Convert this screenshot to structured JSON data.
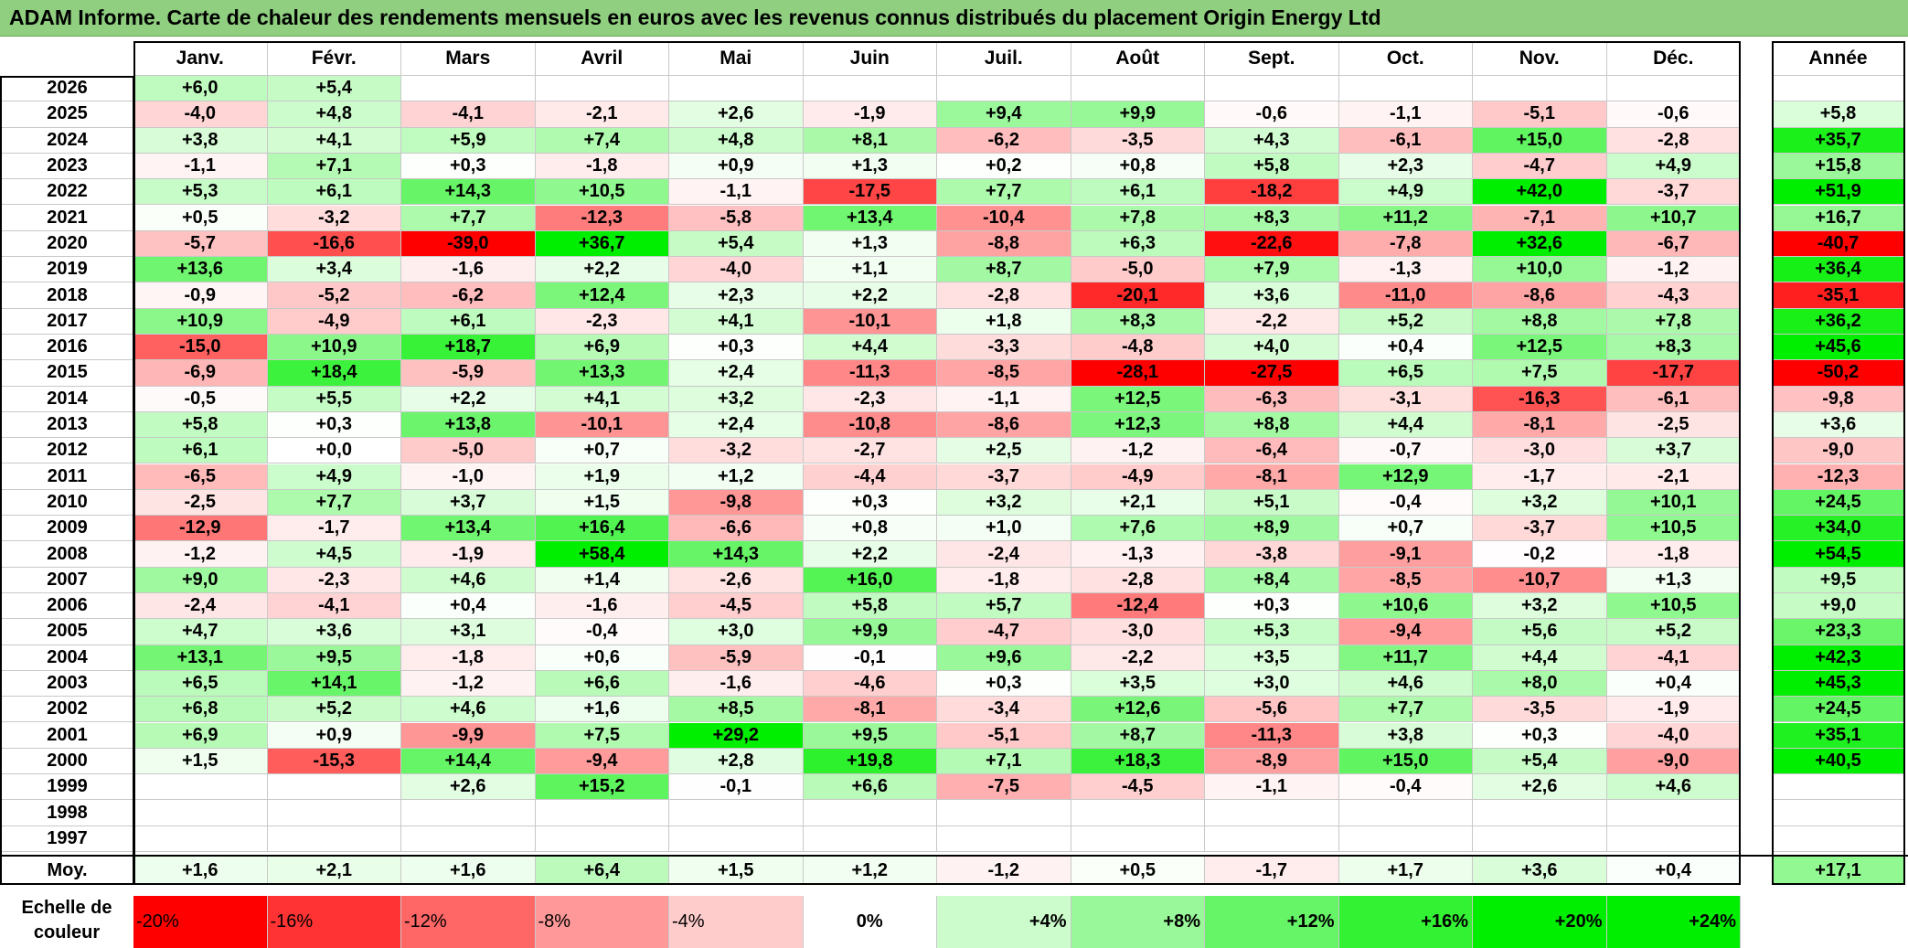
{
  "title": "ADAM Informe. Carte de chaleur des rendements mensuels en euros avec les revenus connus distribués du placement Origin Energy Ltd",
  "chart_data": {
    "type": "heatmap",
    "title": "ADAM Informe. Carte de chaleur des rendements mensuels en euros avec les revenus connus distribués du placement Origin Energy Ltd",
    "months": [
      "Janv.",
      "Févr.",
      "Mars",
      "Avril",
      "Mai",
      "Juin",
      "Juil.",
      "Août",
      "Sept.",
      "Oct.",
      "Nov.",
      "Déc."
    ],
    "year_header": "Année",
    "rows": [
      {
        "year": "2026",
        "months": [
          "+6,0",
          "+5,4",
          "",
          "",
          "",
          "",
          "",
          "",
          "",
          "",
          "",
          ""
        ],
        "annual": ""
      },
      {
        "year": "2025",
        "months": [
          "-4,0",
          "+4,8",
          "-4,1",
          "-2,1",
          "+2,6",
          "-1,9",
          "+9,4",
          "+9,9",
          "-0,6",
          "-1,1",
          "-5,1",
          "-0,6"
        ],
        "annual": "+5,8"
      },
      {
        "year": "2024",
        "months": [
          "+3,8",
          "+4,1",
          "+5,9",
          "+7,4",
          "+4,8",
          "+8,1",
          "-6,2",
          "-3,5",
          "+4,3",
          "-6,1",
          "+15,0",
          "-2,8"
        ],
        "annual": "+35,7"
      },
      {
        "year": "2023",
        "months": [
          "-1,1",
          "+7,1",
          "+0,3",
          "-1,8",
          "+0,9",
          "+1,3",
          "+0,2",
          "+0,8",
          "+5,8",
          "+2,3",
          "-4,7",
          "+4,9"
        ],
        "annual": "+15,8"
      },
      {
        "year": "2022",
        "months": [
          "+5,3",
          "+6,1",
          "+14,3",
          "+10,5",
          "-1,1",
          "-17,5",
          "+7,7",
          "+6,1",
          "-18,2",
          "+4,9",
          "+42,0",
          "-3,7"
        ],
        "annual": "+51,9"
      },
      {
        "year": "2021",
        "months": [
          "+0,5",
          "-3,2",
          "+7,7",
          "-12,3",
          "-5,8",
          "+13,4",
          "-10,4",
          "+7,8",
          "+8,3",
          "+11,2",
          "-7,1",
          "+10,7"
        ],
        "annual": "+16,7"
      },
      {
        "year": "2020",
        "months": [
          "-5,7",
          "-16,6",
          "-39,0",
          "+36,7",
          "+5,4",
          "+1,3",
          "-8,8",
          "+6,3",
          "-22,6",
          "-7,8",
          "+32,6",
          "-6,7"
        ],
        "annual": "-40,7"
      },
      {
        "year": "2019",
        "months": [
          "+13,6",
          "+3,4",
          "-1,6",
          "+2,2",
          "-4,0",
          "+1,1",
          "+8,7",
          "-5,0",
          "+7,9",
          "-1,3",
          "+10,0",
          "-1,2"
        ],
        "annual": "+36,4"
      },
      {
        "year": "2018",
        "months": [
          "-0,9",
          "-5,2",
          "-6,2",
          "+12,4",
          "+2,3",
          "+2,2",
          "-2,8",
          "-20,1",
          "+3,6",
          "-11,0",
          "-8,6",
          "-4,3"
        ],
        "annual": "-35,1"
      },
      {
        "year": "2017",
        "months": [
          "+10,9",
          "-4,9",
          "+6,1",
          "-2,3",
          "+4,1",
          "-10,1",
          "+1,8",
          "+8,3",
          "-2,2",
          "+5,2",
          "+8,8",
          "+7,8"
        ],
        "annual": "+36,2"
      },
      {
        "year": "2016",
        "months": [
          "-15,0",
          "+10,9",
          "+18,7",
          "+6,9",
          "+0,3",
          "+4,4",
          "-3,3",
          "-4,8",
          "+4,0",
          "+0,4",
          "+12,5",
          "+8,3"
        ],
        "annual": "+45,6"
      },
      {
        "year": "2015",
        "months": [
          "-6,9",
          "+18,4",
          "-5,9",
          "+13,3",
          "+2,4",
          "-11,3",
          "-8,5",
          "-28,1",
          "-27,5",
          "+6,5",
          "+7,5",
          "-17,7"
        ],
        "annual": "-50,2"
      },
      {
        "year": "2014",
        "months": [
          "-0,5",
          "+5,5",
          "+2,2",
          "+4,1",
          "+3,2",
          "-2,3",
          "-1,1",
          "+12,5",
          "-6,3",
          "-3,1",
          "-16,3",
          "-6,1"
        ],
        "annual": "-9,8"
      },
      {
        "year": "2013",
        "months": [
          "+5,8",
          "+0,3",
          "+13,8",
          "-10,1",
          "+2,4",
          "-10,8",
          "-8,6",
          "+12,3",
          "+8,8",
          "+4,4",
          "-8,1",
          "-2,5"
        ],
        "annual": "+3,6"
      },
      {
        "year": "2012",
        "months": [
          "+6,1",
          "+0,0",
          "-5,0",
          "+0,7",
          "-3,2",
          "-2,7",
          "+2,5",
          "-1,2",
          "-6,4",
          "-0,7",
          "-3,0",
          "+3,7"
        ],
        "annual": "-9,0"
      },
      {
        "year": "2011",
        "months": [
          "-6,5",
          "+4,9",
          "-1,0",
          "+1,9",
          "+1,2",
          "-4,4",
          "-3,7",
          "-4,9",
          "-8,1",
          "+12,9",
          "-1,7",
          "-2,1"
        ],
        "annual": "-12,3"
      },
      {
        "year": "2010",
        "months": [
          "-2,5",
          "+7,7",
          "+3,7",
          "+1,5",
          "-9,8",
          "+0,3",
          "+3,2",
          "+2,1",
          "+5,1",
          "-0,4",
          "+3,2",
          "+10,1"
        ],
        "annual": "+24,5"
      },
      {
        "year": "2009",
        "months": [
          "-12,9",
          "-1,7",
          "+13,4",
          "+16,4",
          "-6,6",
          "+0,8",
          "+1,0",
          "+7,6",
          "+8,9",
          "+0,7",
          "-3,7",
          "+10,5"
        ],
        "annual": "+34,0"
      },
      {
        "year": "2008",
        "months": [
          "-1,2",
          "+4,5",
          "-1,9",
          "+58,4",
          "+14,3",
          "+2,2",
          "-2,4",
          "-1,3",
          "-3,8",
          "-9,1",
          "-0,2",
          "-1,8"
        ],
        "annual": "+54,5"
      },
      {
        "year": "2007",
        "months": [
          "+9,0",
          "-2,3",
          "+4,6",
          "+1,4",
          "-2,6",
          "+16,0",
          "-1,8",
          "-2,8",
          "+8,4",
          "-8,5",
          "-10,7",
          "+1,3"
        ],
        "annual": "+9,5"
      },
      {
        "year": "2006",
        "months": [
          "-2,4",
          "-4,1",
          "+0,4",
          "-1,6",
          "-4,5",
          "+5,8",
          "+5,7",
          "-12,4",
          "+0,3",
          "+10,6",
          "+3,2",
          "+10,5"
        ],
        "annual": "+9,0"
      },
      {
        "year": "2005",
        "months": [
          "+4,7",
          "+3,6",
          "+3,1",
          "-0,4",
          "+3,0",
          "+9,9",
          "-4,7",
          "-3,0",
          "+5,3",
          "-9,4",
          "+5,6",
          "+5,2"
        ],
        "annual": "+23,3"
      },
      {
        "year": "2004",
        "months": [
          "+13,1",
          "+9,5",
          "-1,8",
          "+0,6",
          "-5,9",
          "-0,1",
          "+9,6",
          "-2,2",
          "+3,5",
          "+11,7",
          "+4,4",
          "-4,1"
        ],
        "annual": "+42,3"
      },
      {
        "year": "2003",
        "months": [
          "+6,5",
          "+14,1",
          "-1,2",
          "+6,6",
          "-1,6",
          "-4,6",
          "+0,3",
          "+3,5",
          "+3,0",
          "+4,6",
          "+8,0",
          "+0,4"
        ],
        "annual": "+45,3"
      },
      {
        "year": "2002",
        "months": [
          "+6,8",
          "+5,2",
          "+4,6",
          "+1,6",
          "+8,5",
          "-8,1",
          "-3,4",
          "+12,6",
          "-5,6",
          "+7,7",
          "-3,5",
          "-1,9"
        ],
        "annual": "+24,5"
      },
      {
        "year": "2001",
        "months": [
          "+6,9",
          "+0,9",
          "-9,9",
          "+7,5",
          "+29,2",
          "+9,5",
          "-5,1",
          "+8,7",
          "-11,3",
          "+3,8",
          "+0,3",
          "-4,0"
        ],
        "annual": "+35,1"
      },
      {
        "year": "2000",
        "months": [
          "+1,5",
          "-15,3",
          "+14,4",
          "-9,4",
          "+2,8",
          "+19,8",
          "+7,1",
          "+18,3",
          "-8,9",
          "+15,0",
          "+5,4",
          "-9,0"
        ],
        "annual": "+40,5"
      },
      {
        "year": "1999",
        "months": [
          "",
          "",
          "+2,6",
          "+15,2",
          "-0,1",
          "+6,6",
          "-7,5",
          "-4,5",
          "-1,1",
          "-0,4",
          "+2,6",
          "+4,6"
        ],
        "annual": ""
      },
      {
        "year": "1998",
        "months": [
          "",
          "",
          "",
          "",
          "",
          "",
          "",
          "",
          "",
          "",
          "",
          ""
        ],
        "annual": ""
      },
      {
        "year": "1997",
        "months": [
          "",
          "",
          "",
          "",
          "",
          "",
          "",
          "",
          "",
          "",
          "",
          ""
        ],
        "annual": ""
      }
    ],
    "average": {
      "label": "Moy.",
      "months": [
        "+1,6",
        "+2,1",
        "+1,6",
        "+6,4",
        "+1,5",
        "+1,2",
        "-1,2",
        "+0,5",
        "-1,7",
        "+1,7",
        "+3,6",
        "+0,4"
      ],
      "annual": "+17,1"
    },
    "color_scale": {
      "label": "Echelle de couleur",
      "steps": [
        "-20%",
        "-16%",
        "-12%",
        "-8%",
        "-4%",
        "0%",
        "+4%",
        "+8%",
        "+12%",
        "+16%",
        "+20%",
        "+24%"
      ],
      "negative_max_color": "#ff0000",
      "positive_max_color": "#00ee00",
      "neutral_color": "#ffffff"
    }
  }
}
